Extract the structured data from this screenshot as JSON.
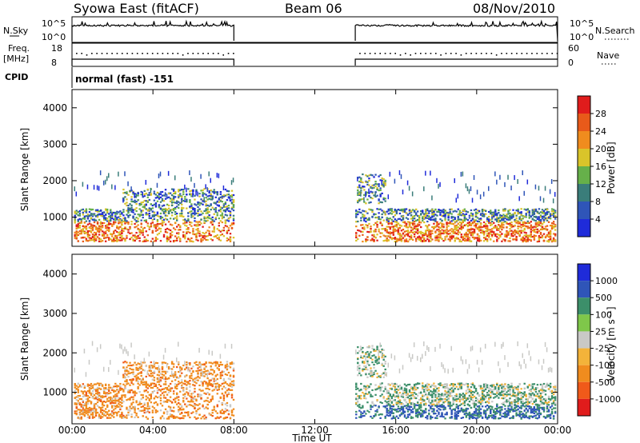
{
  "header": {
    "title_left": "Syowa East (fitACF)",
    "title_center": "Beam 06",
    "title_right": "08/Nov/2010"
  },
  "strips": {
    "nsky_label": "N.Sky",
    "nsky_ticks": [
      "10^5",
      "10^0"
    ],
    "nsearch_label": "N.Search",
    "nsearch_ticks": [
      "10^5",
      "10^0"
    ],
    "freq_label_1": "Freq.",
    "freq_label_2": "[MHz]",
    "freq_ticks": [
      "18",
      "8"
    ],
    "nave_label": "Nave",
    "nave_ticks": [
      "60",
      "0"
    ],
    "cpid_label": "CPID",
    "cpid_value": "normal (fast) -151"
  },
  "colors": {
    "power": [
      "#1f2bd9",
      "#2f55b8",
      "#3a7d7a",
      "#66b04a",
      "#d9c42a",
      "#f08c1e",
      "#e85a1a",
      "#e01c1c"
    ],
    "velocity": [
      "#e01c1c",
      "#f05a1a",
      "#f08c1e",
      "#f3b33a",
      "#c9c9c6",
      "#7fc74a",
      "#3c8f6a",
      "#2f55b8",
      "#1f2bd9"
    ],
    "frame": "#000000"
  },
  "chart_data": [
    {
      "type": "heatmap",
      "name": "power-panel",
      "ylabel": "Slant Range [km]",
      "yticks": [
        "1000",
        "2000",
        "3000",
        "4000"
      ],
      "ylim": [
        200,
        4500
      ],
      "xlim": [
        0,
        24
      ],
      "colorbar_label": "Power [dB]",
      "colorbar_ticks": [
        "4",
        "8",
        "12",
        "16",
        "20",
        "24",
        "28"
      ],
      "colorbar_range": [
        0,
        30
      ],
      "data_gaps_ut": [
        [
          8,
          14
        ]
      ],
      "note_values": "echoes between ~300 and ~2300 km slant range"
    },
    {
      "type": "heatmap",
      "name": "velocity-panel",
      "ylabel": "Slant Range [km]",
      "yticks": [
        "1000",
        "2000",
        "3000",
        "4000"
      ],
      "ylim": [
        200,
        4500
      ],
      "xlim": [
        0,
        24
      ],
      "colorbar_label": "Velocity [m s⁻¹]",
      "colorbar_ticks": [
        "1000",
        "500",
        "100",
        "25",
        "-25",
        "-100",
        "-500",
        "-1000"
      ],
      "data_gaps_ut": [
        [
          8,
          14
        ]
      ]
    }
  ],
  "xaxis": {
    "ticks": [
      "00:00",
      "04:00",
      "08:00",
      "12:00",
      "16:00",
      "20:00",
      "00:00"
    ],
    "label": "Time UT"
  }
}
